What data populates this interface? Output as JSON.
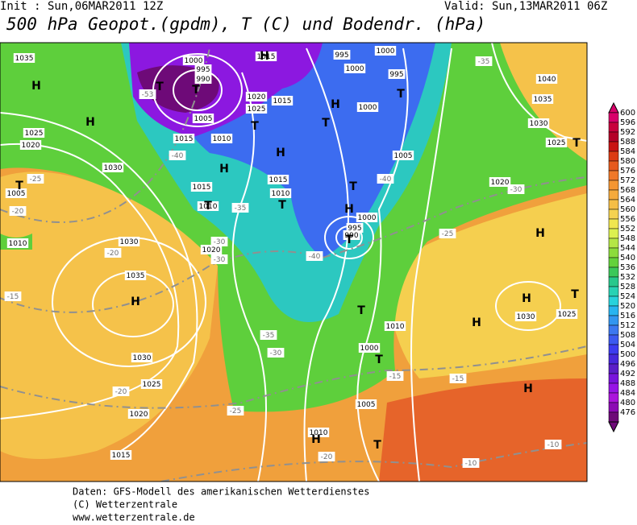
{
  "header": {
    "init": "Init : Sun,06MAR2011 12Z",
    "valid": "Valid: Sun,13MAR2011 06Z",
    "title": "500 hPa Geopot.(gpdm), T (C) und Bodendr. (hPa)"
  },
  "colorbar": {
    "levels": [
      600,
      596,
      592,
      588,
      584,
      580,
      576,
      572,
      568,
      564,
      560,
      556,
      552,
      548,
      544,
      540,
      536,
      532,
      528,
      524,
      520,
      516,
      512,
      508,
      504,
      500,
      496,
      492,
      488,
      484,
      480,
      476
    ],
    "colors": [
      "#d8006a",
      "#c8003c",
      "#b40028",
      "#c81414",
      "#dc3c14",
      "#e65a1e",
      "#f07828",
      "#f59632",
      "#f5aa3c",
      "#f5be46",
      "#f5d250",
      "#f0e650",
      "#dcf050",
      "#b4e646",
      "#8cdc3c",
      "#64d23c",
      "#3cc85a",
      "#28c88c",
      "#28d2b4",
      "#28d2dc",
      "#28b4f0",
      "#3296f0",
      "#3c78f0",
      "#3c5af0",
      "#3c3cf0",
      "#4628dc",
      "#5a1ec8",
      "#7814dc",
      "#9614e6",
      "#aa14dc",
      "#8c0ab4",
      "#6e0a78"
    ]
  },
  "map": {
    "isobars": [
      "1035",
      "1025",
      "1020",
      "1030",
      "1005",
      "1010",
      "1030",
      "1035",
      "1030",
      "1025",
      "1020",
      "1015",
      "1015",
      "1015",
      "1010",
      "1020",
      "1015",
      "1010",
      "1000",
      "995",
      "990",
      "1000",
      "1010",
      "1005",
      "1010",
      "995",
      "1000",
      "1000",
      "995",
      "1000",
      "1005",
      "1020",
      "1030",
      "1025",
      "1040",
      "1035",
      "1030",
      "1025",
      "1000",
      "995",
      "990",
      "1005",
      "1010",
      "1020",
      "1025",
      "1015",
      "1015"
    ],
    "temperatures": [
      "-35",
      "-30",
      "-25",
      "-20",
      "-15",
      "-20",
      "-30",
      "-35",
      "-40",
      "-40",
      "-25",
      "-15",
      "-15",
      "-10",
      "-10",
      "-20",
      "-30",
      "-30",
      "-35",
      "-40",
      "-53",
      "-25",
      "-20"
    ],
    "centers": [
      "H",
      "H",
      "T",
      "T",
      "H",
      "T",
      "H",
      "H",
      "T",
      "T",
      "T",
      "H",
      "T",
      "T",
      "H",
      "T",
      "T",
      "T",
      "H",
      "H",
      "H",
      "T",
      "H",
      "T",
      "H",
      "H",
      "T",
      "T"
    ]
  },
  "footer": [
    "Daten: GFS-Modell des amerikanischen Wetterdienstes",
    "(C) Wetterzentrale",
    "www.wetterzentrale.de"
  ]
}
